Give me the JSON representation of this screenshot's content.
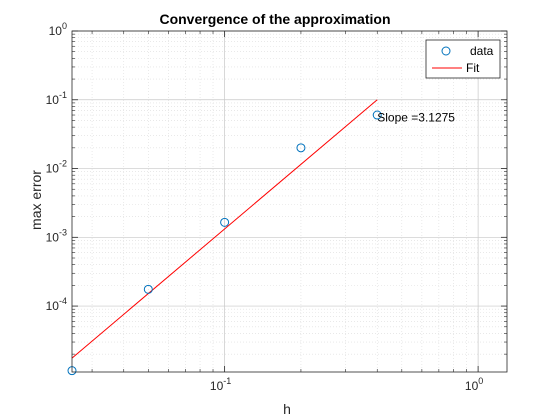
{
  "chart_data": {
    "type": "scatter",
    "title": "Convergence of the approximation",
    "xlabel": "h",
    "ylabel": "max error",
    "xscale": "log",
    "yscale": "log",
    "xlim": [
      0.025,
      1.3
    ],
    "ylim": [
      1.1e-05,
      1
    ],
    "grid": true,
    "minor_grid": true,
    "legend_position": "top-right",
    "x_ticks": [
      {
        "value": 0.1,
        "base": "10",
        "exp": "-1"
      },
      {
        "value": 1,
        "base": "10",
        "exp": "0"
      }
    ],
    "y_ticks": [
      {
        "value": 0.0001,
        "base": "10",
        "exp": "-4"
      },
      {
        "value": 0.001,
        "base": "10",
        "exp": "-3"
      },
      {
        "value": 0.01,
        "base": "10",
        "exp": "-2"
      },
      {
        "value": 0.1,
        "base": "10",
        "exp": "-1"
      },
      {
        "value": 1,
        "base": "10",
        "exp": "0"
      }
    ],
    "series": [
      {
        "name": "data",
        "kind": "markers",
        "marker": "circle",
        "color": "#0072BD",
        "x": [
          0.025,
          0.05,
          0.1,
          0.2,
          0.4
        ],
        "y": [
          1.15e-05,
          0.000175,
          0.00165,
          0.02,
          0.06
        ]
      },
      {
        "name": "Fit",
        "kind": "line",
        "color": "#FF0000",
        "x": [
          0.025,
          0.4
        ],
        "y": [
          1.75e-05,
          0.1
        ]
      }
    ],
    "annotation": {
      "text": "Slope =3.1275",
      "x": 0.4,
      "y": 0.055
    }
  }
}
